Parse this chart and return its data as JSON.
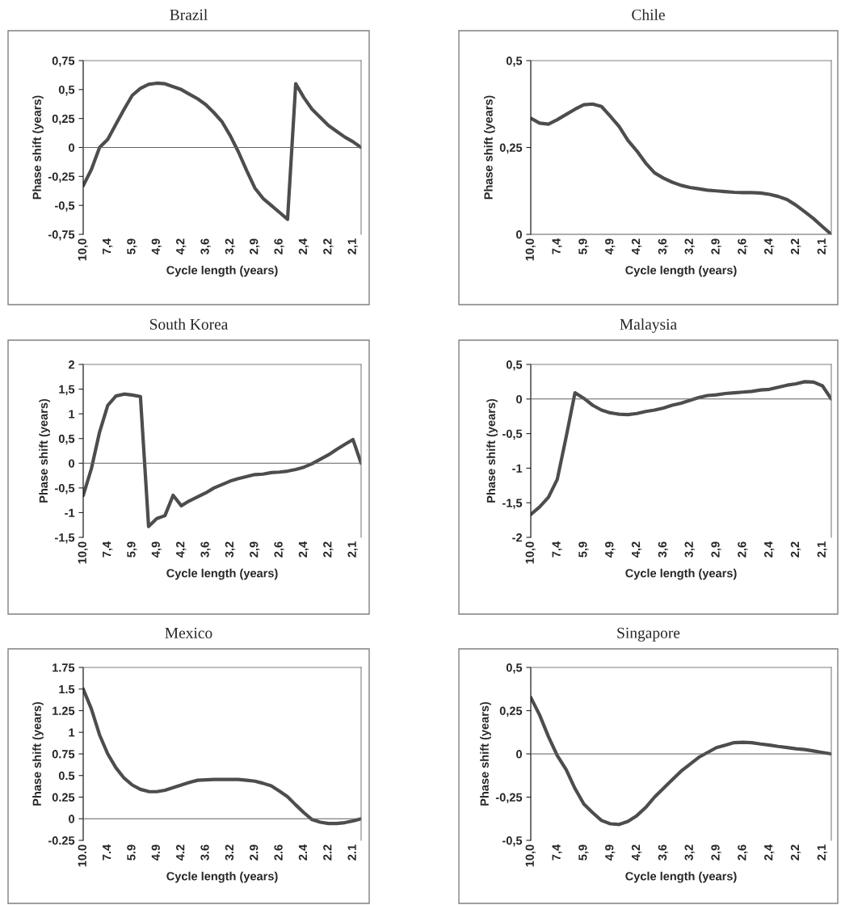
{
  "chart_data": [
    {
      "type": "line",
      "title": "Brazil",
      "xlabel": "Cycle length (years)",
      "ylabel": "Phase shift (years)",
      "categories": [
        "10,0",
        null,
        null,
        "7,4",
        null,
        null,
        "5,9",
        null,
        null,
        "4,9",
        null,
        null,
        "4,2",
        null,
        null,
        "3,6",
        null,
        null,
        "3,2",
        null,
        null,
        "2,9",
        null,
        null,
        "2,6",
        null,
        null,
        "2,4",
        null,
        null,
        "2,2",
        null,
        null,
        "2,1",
        null
      ],
      "series": [
        {
          "color": "#4d4d4d",
          "values": [
            -0.33,
            -0.19,
            0.0,
            0.07,
            0.2,
            0.33,
            0.45,
            0.51,
            0.545,
            0.555,
            0.55,
            0.525,
            0.5,
            0.46,
            0.42,
            0.37,
            0.3,
            0.22,
            0.1,
            -0.04,
            -0.2,
            -0.35,
            -0.44,
            -0.5,
            -0.56,
            -0.62,
            0.55,
            0.43,
            0.33,
            0.26,
            0.19,
            0.14,
            0.09,
            0.05,
            0.0
          ]
        }
      ],
      "ylim": [
        -0.75,
        0.75
      ],
      "yticks": [
        {
          "value": -0.75,
          "label": "-0,75"
        },
        {
          "value": -0.5,
          "label": "-0,5"
        },
        {
          "value": -0.25,
          "label": "-0,25"
        },
        0,
        {
          "value": 0.25,
          "label": "0,25"
        },
        {
          "value": 0.5,
          "label": "0,5"
        },
        {
          "value": 0.75,
          "label": "0,75"
        }
      ]
    },
    {
      "type": "line",
      "title": "Chile",
      "xlabel": "Cycle length (years)",
      "ylabel": "Phase shift (years)",
      "categories": [
        "10,0",
        null,
        null,
        "7,4",
        null,
        null,
        "5,9",
        null,
        null,
        "4,9",
        null,
        null,
        "4,2",
        null,
        null,
        "3,6",
        null,
        null,
        "3,2",
        null,
        null,
        "2,9",
        null,
        null,
        "2,6",
        null,
        null,
        "2,4",
        null,
        null,
        "2,2",
        null,
        null,
        "2,1",
        null
      ],
      "series": [
        {
          "color": "#4d4d4d",
          "values": [
            0.334,
            0.32,
            0.317,
            0.33,
            0.345,
            0.36,
            0.373,
            0.375,
            0.368,
            0.34,
            0.31,
            0.27,
            0.24,
            0.205,
            0.177,
            0.162,
            0.15,
            0.141,
            0.135,
            0.131,
            0.127,
            0.125,
            0.123,
            0.121,
            0.12,
            0.12,
            0.119,
            0.115,
            0.109,
            0.1,
            0.084,
            0.065,
            0.045,
            0.022,
            0.0
          ]
        }
      ],
      "ylim": [
        0,
        0.5
      ],
      "yticks": [
        0,
        {
          "value": 0.25,
          "label": "0,25"
        },
        {
          "value": 0.5,
          "label": "0,5"
        }
      ]
    },
    {
      "type": "line",
      "title": "South Korea",
      "xlabel": "Cycle length (years)",
      "ylabel": "Phase shift (years)",
      "categories": [
        "10,0",
        null,
        null,
        "7,4",
        null,
        null,
        "5,9",
        null,
        null,
        "4,9",
        null,
        null,
        "4,2",
        null,
        null,
        "3,6",
        null,
        null,
        "3,2",
        null,
        null,
        "2,9",
        null,
        null,
        "2,6",
        null,
        null,
        "2,4",
        null,
        null,
        "2,2",
        null,
        null,
        "2,1",
        null
      ],
      "series": [
        {
          "color": "#4d4d4d",
          "values": [
            -0.65,
            -0.11,
            0.63,
            1.17,
            1.36,
            1.4,
            1.38,
            1.35,
            -1.28,
            -1.12,
            -1.06,
            -0.65,
            -0.86,
            -0.76,
            -0.68,
            -0.6,
            -0.5,
            -0.43,
            -0.36,
            -0.31,
            -0.27,
            -0.23,
            -0.22,
            -0.19,
            -0.18,
            -0.16,
            -0.125,
            -0.08,
            -0.01,
            0.08,
            0.17,
            0.28,
            0.38,
            0.48,
            0.0
          ]
        }
      ],
      "ylim": [
        -1.5,
        2
      ],
      "yticks": [
        {
          "value": -1.5,
          "label": "-1,5"
        },
        -1,
        {
          "value": -0.5,
          "label": "-0,5"
        },
        0,
        {
          "value": 0.5,
          "label": "0,5"
        },
        1,
        {
          "value": 1.5,
          "label": "1,5"
        },
        2
      ]
    },
    {
      "type": "line",
      "title": "Malaysia",
      "xlabel": "Cycle length (years)",
      "ylabel": "Phase shift (years)",
      "categories": [
        "10,0",
        null,
        null,
        "7,4",
        null,
        null,
        "5,9",
        null,
        null,
        "4,9",
        null,
        null,
        "4,2",
        null,
        null,
        "3,6",
        null,
        null,
        "3,2",
        null,
        null,
        "2,9",
        null,
        null,
        "2,6",
        null,
        null,
        "2,4",
        null,
        null,
        "2,2",
        null,
        null,
        "2,1",
        null
      ],
      "series": [
        {
          "color": "#4d4d4d",
          "values": [
            -1.67,
            -1.56,
            -1.42,
            -1.16,
            -0.55,
            0.09,
            0.01,
            -0.09,
            -0.16,
            -0.2,
            -0.22,
            -0.225,
            -0.21,
            -0.18,
            -0.16,
            -0.13,
            -0.09,
            -0.06,
            -0.02,
            0.02,
            0.05,
            0.06,
            0.08,
            0.09,
            0.1,
            0.11,
            0.13,
            0.14,
            0.17,
            0.2,
            0.22,
            0.25,
            0.245,
            0.19,
            0.0
          ]
        }
      ],
      "ylim": [
        -2,
        0.5
      ],
      "yticks": [
        -2,
        {
          "value": -1.5,
          "label": "-1,5"
        },
        -1,
        {
          "value": -0.5,
          "label": "-0,5"
        },
        0,
        {
          "value": 0.5,
          "label": "0,5"
        }
      ]
    },
    {
      "type": "line",
      "title": "Mexico",
      "xlabel": "Cycle length (years)",
      "ylabel": "Phase shift (years)",
      "categories": [
        "10.0",
        null,
        null,
        "7.4",
        null,
        null,
        "5.9",
        null,
        null,
        "4.9",
        null,
        null,
        "4.2",
        null,
        null,
        "3.6",
        null,
        null,
        "3.2",
        null,
        null,
        "2.9",
        null,
        null,
        "2.6",
        null,
        null,
        "2.4",
        null,
        null,
        "2.2",
        null,
        null,
        "2.1",
        null
      ],
      "series": [
        {
          "color": "#4d4d4d",
          "values": [
            1.5,
            1.27,
            0.97,
            0.75,
            0.59,
            0.47,
            0.39,
            0.34,
            0.315,
            0.313,
            0.33,
            0.36,
            0.39,
            0.42,
            0.445,
            0.45,
            0.455,
            0.455,
            0.455,
            0.455,
            0.445,
            0.435,
            0.41,
            0.38,
            0.32,
            0.255,
            0.16,
            0.07,
            -0.01,
            -0.04,
            -0.055,
            -0.055,
            -0.045,
            -0.025,
            0.0
          ]
        }
      ],
      "ylim": [
        -0.25,
        1.75
      ],
      "yticks": [
        -0.25,
        0,
        0.25,
        0.5,
        0.75,
        1,
        1.25,
        1.5,
        1.75
      ]
    },
    {
      "type": "line",
      "title": "Singapore",
      "xlabel": "Cycle length (years)",
      "ylabel": "Phase shift (years)",
      "categories": [
        "10,0",
        null,
        null,
        "7,4",
        null,
        null,
        "5,9",
        null,
        null,
        "4,9",
        null,
        null,
        "4,2",
        null,
        null,
        "3,6",
        null,
        null,
        "3,2",
        null,
        null,
        "2,9",
        null,
        null,
        "2,6",
        null,
        null,
        "2,4",
        null,
        null,
        "2,2",
        null,
        null,
        "2,1",
        null
      ],
      "series": [
        {
          "color": "#4d4d4d",
          "values": [
            0.326,
            0.225,
            0.1,
            -0.01,
            -0.09,
            -0.2,
            -0.29,
            -0.34,
            -0.385,
            -0.404,
            -0.408,
            -0.39,
            -0.357,
            -0.31,
            -0.25,
            -0.2,
            -0.15,
            -0.1,
            -0.06,
            -0.02,
            0.008,
            0.036,
            0.05,
            0.065,
            0.067,
            0.065,
            0.057,
            0.051,
            0.043,
            0.037,
            0.03,
            0.025,
            0.017,
            0.008,
            0.0
          ]
        }
      ],
      "ylim": [
        -0.5,
        0.5
      ],
      "yticks": [
        {
          "value": -0.5,
          "label": "-0,5"
        },
        {
          "value": -0.25,
          "label": "-0,25"
        },
        0,
        {
          "value": 0.25,
          "label": "0,25"
        },
        {
          "value": 0.5,
          "label": "0,5"
        }
      ]
    }
  ]
}
